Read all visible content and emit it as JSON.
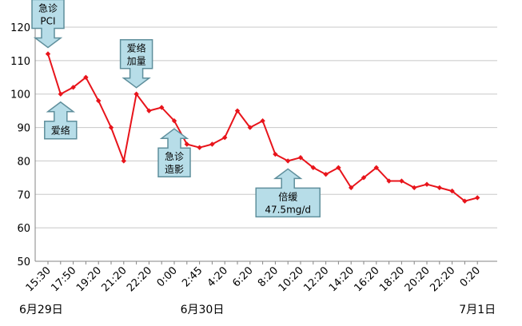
{
  "chart_data": {
    "type": "line",
    "ylim": [
      50,
      120
    ],
    "yticks": [
      50,
      60,
      70,
      80,
      90,
      100,
      110,
      120
    ],
    "grid": true,
    "line_color": "#e8141b",
    "callout_fill": "#b7dde8",
    "callout_stroke": "#5f8f9c",
    "tick_labels": [
      {
        "label": "15:30",
        "index": 0
      },
      {
        "label": "17:50",
        "index": 2
      },
      {
        "label": "19:20",
        "index": 4
      },
      {
        "label": "21:20",
        "index": 6
      },
      {
        "label": "22:20",
        "index": 8
      },
      {
        "label": "0:00",
        "index": 10
      },
      {
        "label": "2:45",
        "index": 12
      },
      {
        "label": "4:20",
        "index": 14
      },
      {
        "label": "6:20",
        "index": 16
      },
      {
        "label": "8:20",
        "index": 18
      },
      {
        "label": "10:20",
        "index": 20
      },
      {
        "label": "12:20",
        "index": 22
      },
      {
        "label": "14:20",
        "index": 24
      },
      {
        "label": "16:20",
        "index": 26
      },
      {
        "label": "18:20",
        "index": 28
      },
      {
        "label": "20:20",
        "index": 30
      },
      {
        "label": "22:20",
        "index": 32
      },
      {
        "label": "0:20",
        "index": 34
      }
    ],
    "date_labels": [
      {
        "label": "6月29日",
        "index": 0
      },
      {
        "label": "6月30日",
        "index": 12
      },
      {
        "label": "7月1日",
        "index": 34
      }
    ],
    "values": [
      112,
      100,
      102,
      105,
      98,
      90,
      80,
      100,
      95,
      96,
      92,
      85,
      84,
      85,
      87,
      95,
      90,
      92,
      82,
      80,
      81,
      78,
      76,
      78,
      72,
      75,
      78,
      74,
      74,
      72,
      73,
      72,
      71,
      68,
      69
    ],
    "callouts": [
      {
        "lines": [
          "急诊",
          "PCI"
        ],
        "index": 0,
        "direction": "down"
      },
      {
        "lines": [
          "爱络"
        ],
        "index": 1,
        "direction": "up"
      },
      {
        "lines": [
          "爱络",
          "加量"
        ],
        "index": 7,
        "direction": "down"
      },
      {
        "lines": [
          "急诊",
          "造影"
        ],
        "index": 10,
        "direction": "up"
      },
      {
        "lines": [
          "倍缓",
          "47.5mg/d"
        ],
        "index": 19,
        "direction": "up"
      }
    ]
  }
}
